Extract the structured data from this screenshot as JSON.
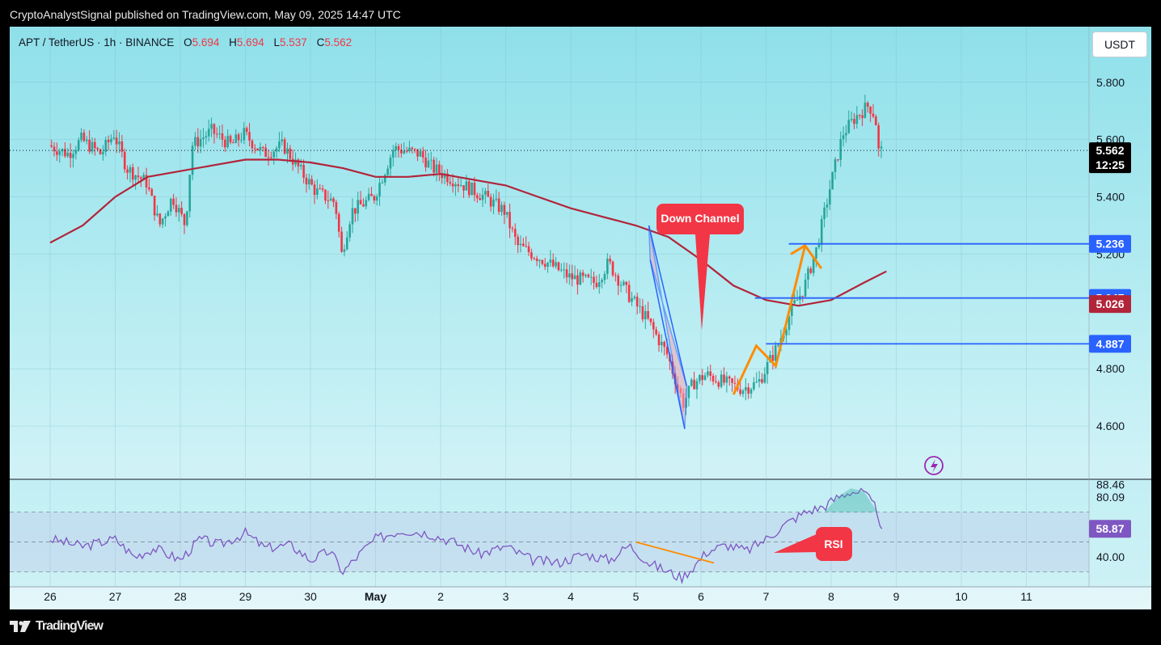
{
  "header": {
    "published_by": "CryptoAnalystSignal published on TradingView.com, May 09, 2025 14:47 UTC"
  },
  "symbol": {
    "name": "APT / TetherUS · 1h · BINANCE",
    "o_key": "O",
    "o_val": "5.694",
    "h_key": "H",
    "h_val": "5.694",
    "l_key": "L",
    "l_val": "5.537",
    "c_key": "C",
    "c_val": "5.562"
  },
  "unit_button": "USDT",
  "footer": {
    "brand": "TradingView"
  },
  "colors": {
    "up": "#26a69a",
    "down": "#f23645",
    "ma": "#b2243a",
    "level_line": "#2962ff",
    "rsi_line": "#7e57c2",
    "trend_orange": "#ff8c00",
    "callout_red": "#f23645"
  },
  "chart_data": [
    {
      "type": "candlestick",
      "title": "APT / TetherUS · 1h · BINANCE",
      "x": [
        "26",
        "27",
        "28",
        "29",
        "30",
        "May",
        "2",
        "3",
        "4",
        "5",
        "6",
        "7",
        "8",
        "9",
        "10",
        "11"
      ],
      "y_ticks": [
        "5.800",
        "5.600",
        "5.400",
        "5.200",
        "4.800",
        "4.600"
      ],
      "ylim": [
        4.4,
        5.98
      ],
      "grid": true,
      "last_price": "5.562",
      "countdown": "12:25",
      "price_levels": [
        {
          "label": "5.236",
          "value": 5.236,
          "color": "#2962ff"
        },
        {
          "label": "5.047",
          "value": 5.047,
          "color": "#2962ff"
        },
        {
          "label": "5.026",
          "value": 5.026,
          "color": "#b2243a"
        },
        {
          "label": "4.887",
          "value": 4.887,
          "color": "#2962ff"
        }
      ],
      "price_path": [
        [
          0,
          5.58
        ],
        [
          0.3,
          5.55
        ],
        [
          0.5,
          5.6
        ],
        [
          0.8,
          5.55
        ],
        [
          1.0,
          5.62
        ],
        [
          1.2,
          5.5
        ],
        [
          1.5,
          5.45
        ],
        [
          1.7,
          5.3
        ],
        [
          1.9,
          5.4
        ],
        [
          2.1,
          5.3
        ],
        [
          2.2,
          5.58
        ],
        [
          2.5,
          5.63
        ],
        [
          2.8,
          5.58
        ],
        [
          3.0,
          5.62
        ],
        [
          3.3,
          5.55
        ],
        [
          3.6,
          5.58
        ],
        [
          3.9,
          5.48
        ],
        [
          4.1,
          5.42
        ],
        [
          4.4,
          5.38
        ],
        [
          4.5,
          5.2
        ],
        [
          4.65,
          5.35
        ],
        [
          5.0,
          5.4
        ],
        [
          5.3,
          5.57
        ],
        [
          5.7,
          5.55
        ],
        [
          5.9,
          5.5
        ],
        [
          6.3,
          5.45
        ],
        [
          6.7,
          5.4
        ],
        [
          7.0,
          5.35
        ],
        [
          7.2,
          5.23
        ],
        [
          7.6,
          5.18
        ],
        [
          8.0,
          5.12
        ],
        [
          8.4,
          5.1
        ],
        [
          8.6,
          5.17
        ],
        [
          8.9,
          5.06
        ],
        [
          9.2,
          4.97
        ],
        [
          9.5,
          4.85
        ],
        [
          9.75,
          4.68
        ],
        [
          9.9,
          4.75
        ],
        [
          10.1,
          4.78
        ],
        [
          10.4,
          4.75
        ],
        [
          10.65,
          4.73
        ],
        [
          10.9,
          4.75
        ],
        [
          11.2,
          4.88
        ],
        [
          11.4,
          5.0
        ],
        [
          11.6,
          5.08
        ],
        [
          11.8,
          5.22
        ],
        [
          12.0,
          5.43
        ],
        [
          12.2,
          5.62
        ],
        [
          12.4,
          5.68
        ],
        [
          12.6,
          5.72
        ],
        [
          12.7,
          5.68
        ],
        [
          12.75,
          5.56
        ]
      ],
      "ma_path": [
        [
          0,
          5.24
        ],
        [
          0.5,
          5.3
        ],
        [
          1.0,
          5.4
        ],
        [
          1.5,
          5.47
        ],
        [
          2.0,
          5.49
        ],
        [
          2.5,
          5.51
        ],
        [
          3.0,
          5.53
        ],
        [
          3.5,
          5.53
        ],
        [
          4.0,
          5.52
        ],
        [
          4.5,
          5.5
        ],
        [
          5.0,
          5.47
        ],
        [
          5.5,
          5.47
        ],
        [
          6.0,
          5.48
        ],
        [
          6.5,
          5.46
        ],
        [
          7.0,
          5.44
        ],
        [
          7.5,
          5.4
        ],
        [
          8.0,
          5.36
        ],
        [
          8.5,
          5.33
        ],
        [
          9.0,
          5.3
        ],
        [
          9.5,
          5.26
        ],
        [
          10.0,
          5.18
        ],
        [
          10.5,
          5.09
        ],
        [
          11.0,
          5.04
        ],
        [
          11.5,
          5.02
        ],
        [
          12.0,
          5.04
        ],
        [
          12.5,
          5.1
        ],
        [
          12.85,
          5.14
        ]
      ],
      "annotations": {
        "down_channel_label": "Down Channel",
        "rsi_label": "RSI"
      }
    },
    {
      "type": "line",
      "title": "RSI",
      "y_ticks": [
        "88.46",
        "80.09",
        "40.00"
      ],
      "last_value": "58.87",
      "ylim": [
        20,
        92
      ],
      "bands": [
        70,
        50,
        30
      ],
      "rsi_path": [
        [
          0,
          52
        ],
        [
          0.5,
          47
        ],
        [
          1.0,
          52
        ],
        [
          1.3,
          40
        ],
        [
          1.6,
          46
        ],
        [
          2.0,
          38
        ],
        [
          2.3,
          52
        ],
        [
          2.6,
          48
        ],
        [
          3.0,
          56
        ],
        [
          3.3,
          46
        ],
        [
          3.7,
          48
        ],
        [
          4.0,
          38
        ],
        [
          4.3,
          44
        ],
        [
          4.5,
          30
        ],
        [
          4.8,
          44
        ],
        [
          5.0,
          52
        ],
        [
          5.4,
          58
        ],
        [
          5.8,
          56
        ],
        [
          6.2,
          50
        ],
        [
          6.6,
          42
        ],
        [
          7.0,
          47
        ],
        [
          7.4,
          38
        ],
        [
          7.8,
          36
        ],
        [
          8.2,
          42
        ],
        [
          8.6,
          38
        ],
        [
          8.9,
          48
        ],
        [
          9.2,
          36
        ],
        [
          9.5,
          30
        ],
        [
          9.7,
          26
        ],
        [
          9.9,
          34
        ],
        [
          10.1,
          44
        ],
        [
          10.4,
          48
        ],
        [
          10.7,
          44
        ],
        [
          11.0,
          52
        ],
        [
          11.3,
          62
        ],
        [
          11.6,
          70
        ],
        [
          11.9,
          74
        ],
        [
          12.1,
          80
        ],
        [
          12.3,
          84
        ],
        [
          12.5,
          83
        ],
        [
          12.7,
          72
        ],
        [
          12.78,
          58.87
        ]
      ]
    }
  ]
}
